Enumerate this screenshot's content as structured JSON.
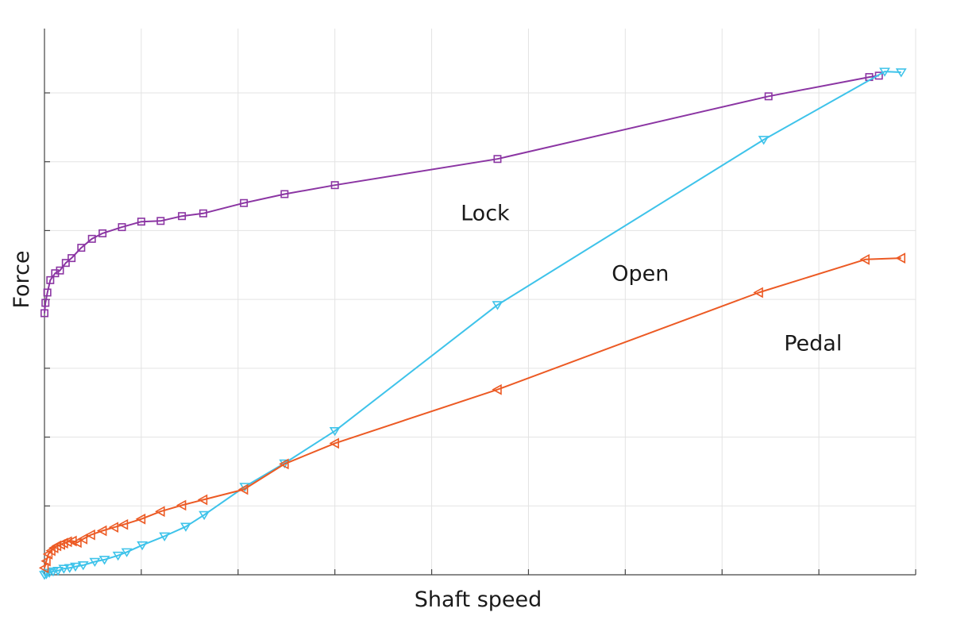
{
  "chart_data": {
    "type": "line",
    "title": "",
    "xlabel": "Shaft speed",
    "ylabel": "Force",
    "xlim": [
      0,
      9
    ],
    "ylim": [
      0,
      7
    ],
    "grid": true,
    "legend": "none",
    "x_tick_labels": false,
    "y_tick_labels": false,
    "series": [
      {
        "name": "Lock",
        "color": "#8b35a3",
        "marker": "square",
        "x": [
          0.0,
          0.01,
          0.03,
          0.06,
          0.11,
          0.16,
          0.22,
          0.28,
          0.38,
          0.49,
          0.6,
          0.8,
          1.0,
          1.2,
          1.42,
          1.64,
          2.06,
          2.48,
          3.0,
          4.68,
          7.48,
          8.52,
          8.62
        ],
        "y": [
          3.8,
          3.95,
          4.1,
          4.28,
          4.38,
          4.42,
          4.53,
          4.6,
          4.75,
          4.88,
          4.96,
          5.05,
          5.13,
          5.14,
          5.21,
          5.25,
          5.4,
          5.53,
          5.66,
          6.04,
          6.95,
          7.23,
          7.25
        ]
      },
      {
        "name": "Open",
        "color": "#3ec3ea",
        "marker": "triangle-down",
        "x": [
          0.0,
          0.02,
          0.05,
          0.09,
          0.14,
          0.2,
          0.26,
          0.32,
          0.4,
          0.52,
          0.62,
          0.76,
          0.85,
          1.01,
          1.24,
          1.46,
          1.65,
          2.07,
          2.48,
          3.0,
          4.68,
          7.43,
          8.68,
          8.85
        ],
        "y": [
          0.0,
          0.01,
          0.03,
          0.05,
          0.06,
          0.09,
          0.1,
          0.12,
          0.14,
          0.19,
          0.22,
          0.28,
          0.33,
          0.43,
          0.56,
          0.7,
          0.87,
          1.28,
          1.62,
          2.09,
          3.92,
          6.32,
          7.31,
          7.3
        ]
      },
      {
        "name": "Pedal",
        "color": "#ec5a24",
        "marker": "triangle-left",
        "x": [
          0.0,
          0.02,
          0.04,
          0.07,
          0.1,
          0.13,
          0.17,
          0.2,
          0.24,
          0.29,
          0.34,
          0.4,
          0.48,
          0.6,
          0.72,
          0.82,
          1.0,
          1.2,
          1.42,
          1.64,
          2.06,
          2.48,
          3.0,
          4.68,
          7.38,
          8.48,
          8.85
        ],
        "y": [
          0.1,
          0.2,
          0.3,
          0.35,
          0.39,
          0.42,
          0.44,
          0.46,
          0.48,
          0.49,
          0.47,
          0.52,
          0.58,
          0.64,
          0.69,
          0.73,
          0.81,
          0.92,
          1.01,
          1.09,
          1.24,
          1.61,
          1.91,
          2.69,
          4.1,
          4.58,
          4.6
        ]
      }
    ],
    "annotations": [
      {
        "text": "Lock",
        "x": 4.3,
        "y": 5.15
      },
      {
        "text": "Open",
        "x": 5.86,
        "y": 4.27
      },
      {
        "text": "Pedal",
        "x": 7.64,
        "y": 3.26
      }
    ]
  }
}
